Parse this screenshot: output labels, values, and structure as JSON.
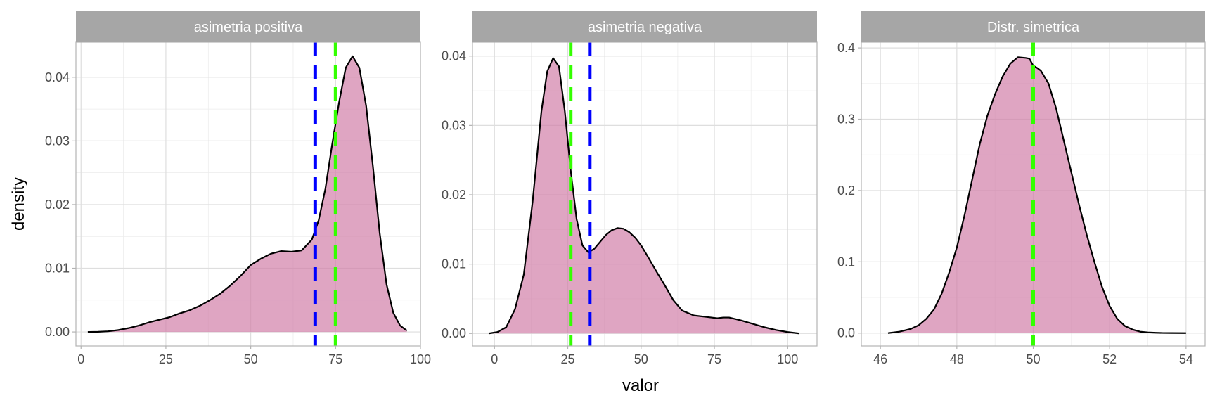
{
  "chart_data": {
    "type": "area",
    "xlabel": "valor",
    "ylabel": "density",
    "fill_color": "#d17fa8",
    "mean_line_color": "#0000ff",
    "median_line_color": "#33ff00",
    "facets": [
      {
        "strip_label": "asimetria positiva",
        "xlim": [
          -1.5,
          100
        ],
        "ylim": [
          -0.0022,
          0.0455
        ],
        "xticks": [
          0,
          25,
          50,
          75,
          100
        ],
        "xtick_labels": [
          "0",
          "25",
          "50",
          "75",
          "100"
        ],
        "yticks": [
          0,
          0.01,
          0.02,
          0.03,
          0.04
        ],
        "ytick_labels": [
          "0.00",
          "0.01",
          "0.02",
          "0.03",
          "0.04"
        ],
        "mean": 69,
        "median": 75,
        "x": [
          2,
          5,
          8,
          11,
          14,
          17,
          20,
          23,
          26,
          29,
          32,
          35,
          38,
          41,
          44,
          47,
          50,
          53,
          56,
          59,
          62,
          65,
          68,
          70,
          72,
          74,
          76,
          78,
          80,
          82,
          84,
          86,
          88,
          90,
          92,
          94,
          96
        ],
        "y": [
          0.0,
          2e-05,
          0.0001,
          0.0003,
          0.0006,
          0.001,
          0.0015,
          0.0019,
          0.0023,
          0.0029,
          0.0034,
          0.0041,
          0.005,
          0.006,
          0.0073,
          0.0088,
          0.0105,
          0.0115,
          0.0123,
          0.0127,
          0.0126,
          0.0128,
          0.0145,
          0.0175,
          0.0225,
          0.0295,
          0.036,
          0.0415,
          0.0433,
          0.0415,
          0.0355,
          0.026,
          0.0155,
          0.0075,
          0.003,
          0.001,
          0.0002
        ]
      },
      {
        "strip_label": "asimetria negativa",
        "xlim": [
          -7.5,
          110
        ],
        "ylim": [
          -0.0018,
          0.042
        ],
        "xticks": [
          0,
          25,
          50,
          75,
          100
        ],
        "xtick_labels": [
          "0",
          "25",
          "50",
          "75",
          "100"
        ],
        "yticks": [
          0,
          0.01,
          0.02,
          0.03,
          0.04
        ],
        "ytick_labels": [
          "0.00",
          "0.01",
          "0.02",
          "0.03",
          "0.04"
        ],
        "mean": 32.5,
        "median": 26,
        "x": [
          -2,
          1,
          4,
          7,
          10,
          13,
          16,
          18,
          20,
          22,
          24,
          26,
          28,
          30,
          32,
          34,
          36,
          38,
          40,
          42,
          44,
          46,
          48,
          50,
          52,
          55,
          58,
          61,
          64,
          68,
          72,
          76,
          78,
          80,
          84,
          88,
          92,
          96,
          100,
          104
        ],
        "y": [
          0.0,
          0.0002,
          0.0009,
          0.0035,
          0.0085,
          0.019,
          0.032,
          0.0378,
          0.0397,
          0.0385,
          0.032,
          0.0235,
          0.0165,
          0.0127,
          0.0117,
          0.0122,
          0.0132,
          0.0142,
          0.0149,
          0.0152,
          0.0151,
          0.0146,
          0.0138,
          0.0127,
          0.0113,
          0.0091,
          0.007,
          0.0048,
          0.0033,
          0.0026,
          0.0024,
          0.0022,
          0.0023,
          0.0023,
          0.0019,
          0.0014,
          0.0009,
          0.0005,
          0.0002,
          0.0
        ]
      },
      {
        "strip_label": "Distr. simetrica",
        "xlim": [
          45.5,
          54.5
        ],
        "ylim": [
          -0.018,
          0.408
        ],
        "xticks": [
          46,
          48,
          50,
          52,
          54
        ],
        "xtick_labels": [
          "46",
          "48",
          "50",
          "52",
          "54"
        ],
        "yticks": [
          0,
          0.1,
          0.2,
          0.3,
          0.4
        ],
        "ytick_labels": [
          "0.0",
          "0.1",
          "0.2",
          "0.3",
          "0.4"
        ],
        "mean": 50,
        "median": 50,
        "x": [
          46.2,
          46.5,
          46.8,
          47.0,
          47.2,
          47.4,
          47.6,
          47.8,
          48.0,
          48.2,
          48.4,
          48.6,
          48.8,
          49.0,
          49.2,
          49.4,
          49.6,
          49.8,
          49.9,
          50.0,
          50.1,
          50.2,
          50.4,
          50.6,
          50.8,
          51.0,
          51.2,
          51.4,
          51.6,
          51.8,
          52.0,
          52.2,
          52.4,
          52.6,
          52.8,
          53.0,
          53.2,
          53.4,
          53.6,
          54.0
        ],
        "y": [
          0.0,
          0.002,
          0.006,
          0.011,
          0.02,
          0.033,
          0.055,
          0.085,
          0.12,
          0.165,
          0.215,
          0.265,
          0.305,
          0.335,
          0.36,
          0.378,
          0.387,
          0.386,
          0.385,
          0.375,
          0.372,
          0.368,
          0.35,
          0.315,
          0.27,
          0.225,
          0.18,
          0.138,
          0.1,
          0.065,
          0.038,
          0.02,
          0.01,
          0.005,
          0.002,
          0.001,
          0.0005,
          0.0002,
          0.0001,
          0.0
        ]
      }
    ]
  }
}
